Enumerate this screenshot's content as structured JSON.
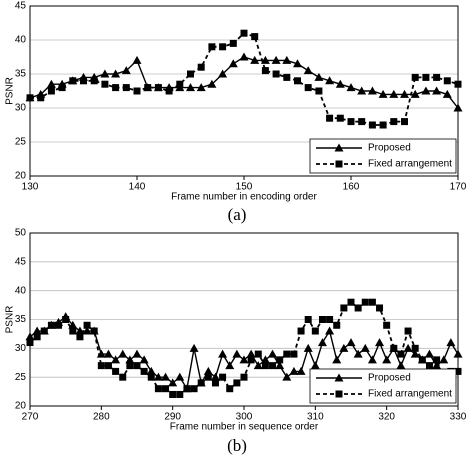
{
  "chart_data": [
    {
      "type": "line",
      "caption": "(a)",
      "xlabel": "Frame number in encoding order",
      "ylabel": "PSNR",
      "x": [
        130,
        131,
        132,
        133,
        134,
        135,
        136,
        137,
        138,
        139,
        140,
        141,
        142,
        143,
        144,
        145,
        146,
        147,
        148,
        149,
        150,
        151,
        152,
        153,
        154,
        155,
        156,
        157,
        158,
        159,
        160,
        161,
        162,
        163,
        164,
        165,
        166,
        167,
        168,
        169,
        170
      ],
      "xlim": [
        130,
        170
      ],
      "xticks": [
        130,
        140,
        150,
        160,
        170
      ],
      "ylim": [
        20,
        45
      ],
      "yticks": [
        20,
        25,
        30,
        35,
        40,
        45
      ],
      "grid": true,
      "legend": "lower right",
      "series": [
        {
          "name": "Proposed",
          "color": "#000000",
          "marker": "triangle",
          "dashed": false,
          "values": [
            31.5,
            32,
            33.5,
            33.5,
            34,
            34.5,
            34.5,
            35,
            35,
            35.5,
            37,
            33,
            33,
            33,
            33,
            33,
            33,
            33.5,
            35,
            36.5,
            37.5,
            37,
            37,
            37,
            37,
            36.5,
            35.5,
            34.5,
            34,
            33.5,
            33,
            32.5,
            32.5,
            32,
            32,
            32,
            32,
            32.5,
            32.5,
            32,
            30
          ]
        },
        {
          "name": "Fixed arrangement",
          "color": "#000000",
          "marker": "square",
          "dashed": true,
          "values": [
            31.5,
            31.5,
            32.5,
            33,
            34,
            34,
            34,
            33.5,
            33,
            33,
            32.5,
            33,
            33,
            32.5,
            33.5,
            35,
            36,
            39,
            39,
            39.5,
            41,
            40.5,
            35.5,
            35,
            34.5,
            34,
            33,
            32.5,
            28.5,
            28.5,
            28,
            28,
            27.5,
            27.5,
            28,
            28,
            34.5,
            34.5,
            34.5,
            34,
            33.5
          ]
        }
      ]
    },
    {
      "type": "line",
      "caption": "(b)",
      "xlabel": "Frame number in sequence order",
      "ylabel": "PSNR",
      "x": [
        270,
        271,
        272,
        273,
        274,
        275,
        276,
        277,
        278,
        279,
        280,
        281,
        282,
        283,
        284,
        285,
        286,
        287,
        288,
        289,
        290,
        291,
        292,
        293,
        294,
        295,
        296,
        297,
        298,
        299,
        300,
        301,
        302,
        303,
        304,
        305,
        306,
        307,
        308,
        309,
        310,
        311,
        312,
        313,
        314,
        315,
        316,
        317,
        318,
        319,
        320,
        321,
        322,
        323,
        324,
        325,
        326,
        327,
        328,
        329,
        330
      ],
      "xlim": [
        270,
        330
      ],
      "xticks": [
        270,
        280,
        290,
        300,
        310,
        320,
        330
      ],
      "ylim": [
        20,
        50
      ],
      "yticks": [
        20,
        25,
        30,
        35,
        40,
        45,
        50
      ],
      "grid": true,
      "legend": "lower right",
      "series": [
        {
          "name": "Proposed",
          "color": "#000000",
          "marker": "triangle",
          "dashed": false,
          "values": [
            32,
            33,
            33,
            34,
            34.5,
            35.5,
            34,
            33,
            33,
            33,
            29,
            29,
            28,
            29,
            28,
            29,
            28,
            26,
            25,
            25,
            24,
            25,
            23,
            30,
            24,
            26,
            25,
            29,
            27,
            29,
            28,
            29,
            27,
            28,
            29,
            27,
            25,
            26,
            26,
            30,
            27,
            31,
            33,
            28,
            30,
            31,
            29,
            30,
            28,
            31,
            28,
            30,
            27,
            30,
            29,
            28,
            29,
            27,
            28,
            31,
            29
          ]
        },
        {
          "name": "Fixed arrangement",
          "color": "#000000",
          "marker": "square",
          "dashed": true,
          "values": [
            31,
            32,
            33,
            34,
            34,
            35,
            33,
            32,
            34,
            33,
            27,
            27,
            26,
            25,
            27,
            27,
            26,
            25,
            23,
            23,
            22,
            22,
            23,
            23,
            24,
            25,
            24,
            25,
            23,
            24,
            25,
            28,
            29,
            27,
            27,
            28,
            29,
            29,
            33,
            35,
            33,
            35,
            35,
            34,
            37,
            38,
            37,
            38,
            38,
            37,
            34,
            30,
            29,
            33,
            30,
            28,
            27,
            28,
            25,
            26,
            26
          ]
        }
      ]
    }
  ]
}
